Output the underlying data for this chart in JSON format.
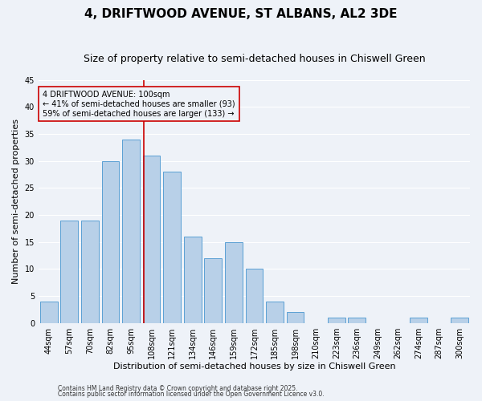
{
  "title": "4, DRIFTWOOD AVENUE, ST ALBANS, AL2 3DE",
  "subtitle": "Size of property relative to semi-detached houses in Chiswell Green",
  "xlabel": "Distribution of semi-detached houses by size in Chiswell Green",
  "ylabel": "Number of semi-detached properties",
  "bins": [
    "44sqm",
    "57sqm",
    "70sqm",
    "82sqm",
    "95sqm",
    "108sqm",
    "121sqm",
    "134sqm",
    "146sqm",
    "159sqm",
    "172sqm",
    "185sqm",
    "198sqm",
    "210sqm",
    "223sqm",
    "236sqm",
    "249sqm",
    "262sqm",
    "274sqm",
    "287sqm",
    "300sqm"
  ],
  "values": [
    4,
    19,
    19,
    30,
    34,
    31,
    28,
    16,
    12,
    15,
    10,
    4,
    2,
    0,
    1,
    1,
    0,
    0,
    1,
    0,
    1
  ],
  "bar_color": "#b8d0e8",
  "bar_edge_color": "#5a9fd4",
  "annotation_title": "4 DRIFTWOOD AVENUE: 100sqm",
  "annotation_line1": "← 41% of semi-detached houses are smaller (93)",
  "annotation_line2": "59% of semi-detached houses are larger (133) →",
  "annotation_box_color": "#cc0000",
  "vline_color": "#cc0000",
  "vline_x": 4.62,
  "footer1": "Contains HM Land Registry data © Crown copyright and database right 2025.",
  "footer2": "Contains public sector information licensed under the Open Government Licence v3.0.",
  "ylim": [
    0,
    45
  ],
  "yticks": [
    0,
    5,
    10,
    15,
    20,
    25,
    30,
    35,
    40,
    45
  ],
  "bg_color": "#eef2f8",
  "grid_color": "#ffffff",
  "title_fontsize": 11,
  "subtitle_fontsize": 9,
  "axis_label_fontsize": 8,
  "tick_fontsize": 7,
  "annotation_fontsize": 7,
  "footer_fontsize": 5.5
}
